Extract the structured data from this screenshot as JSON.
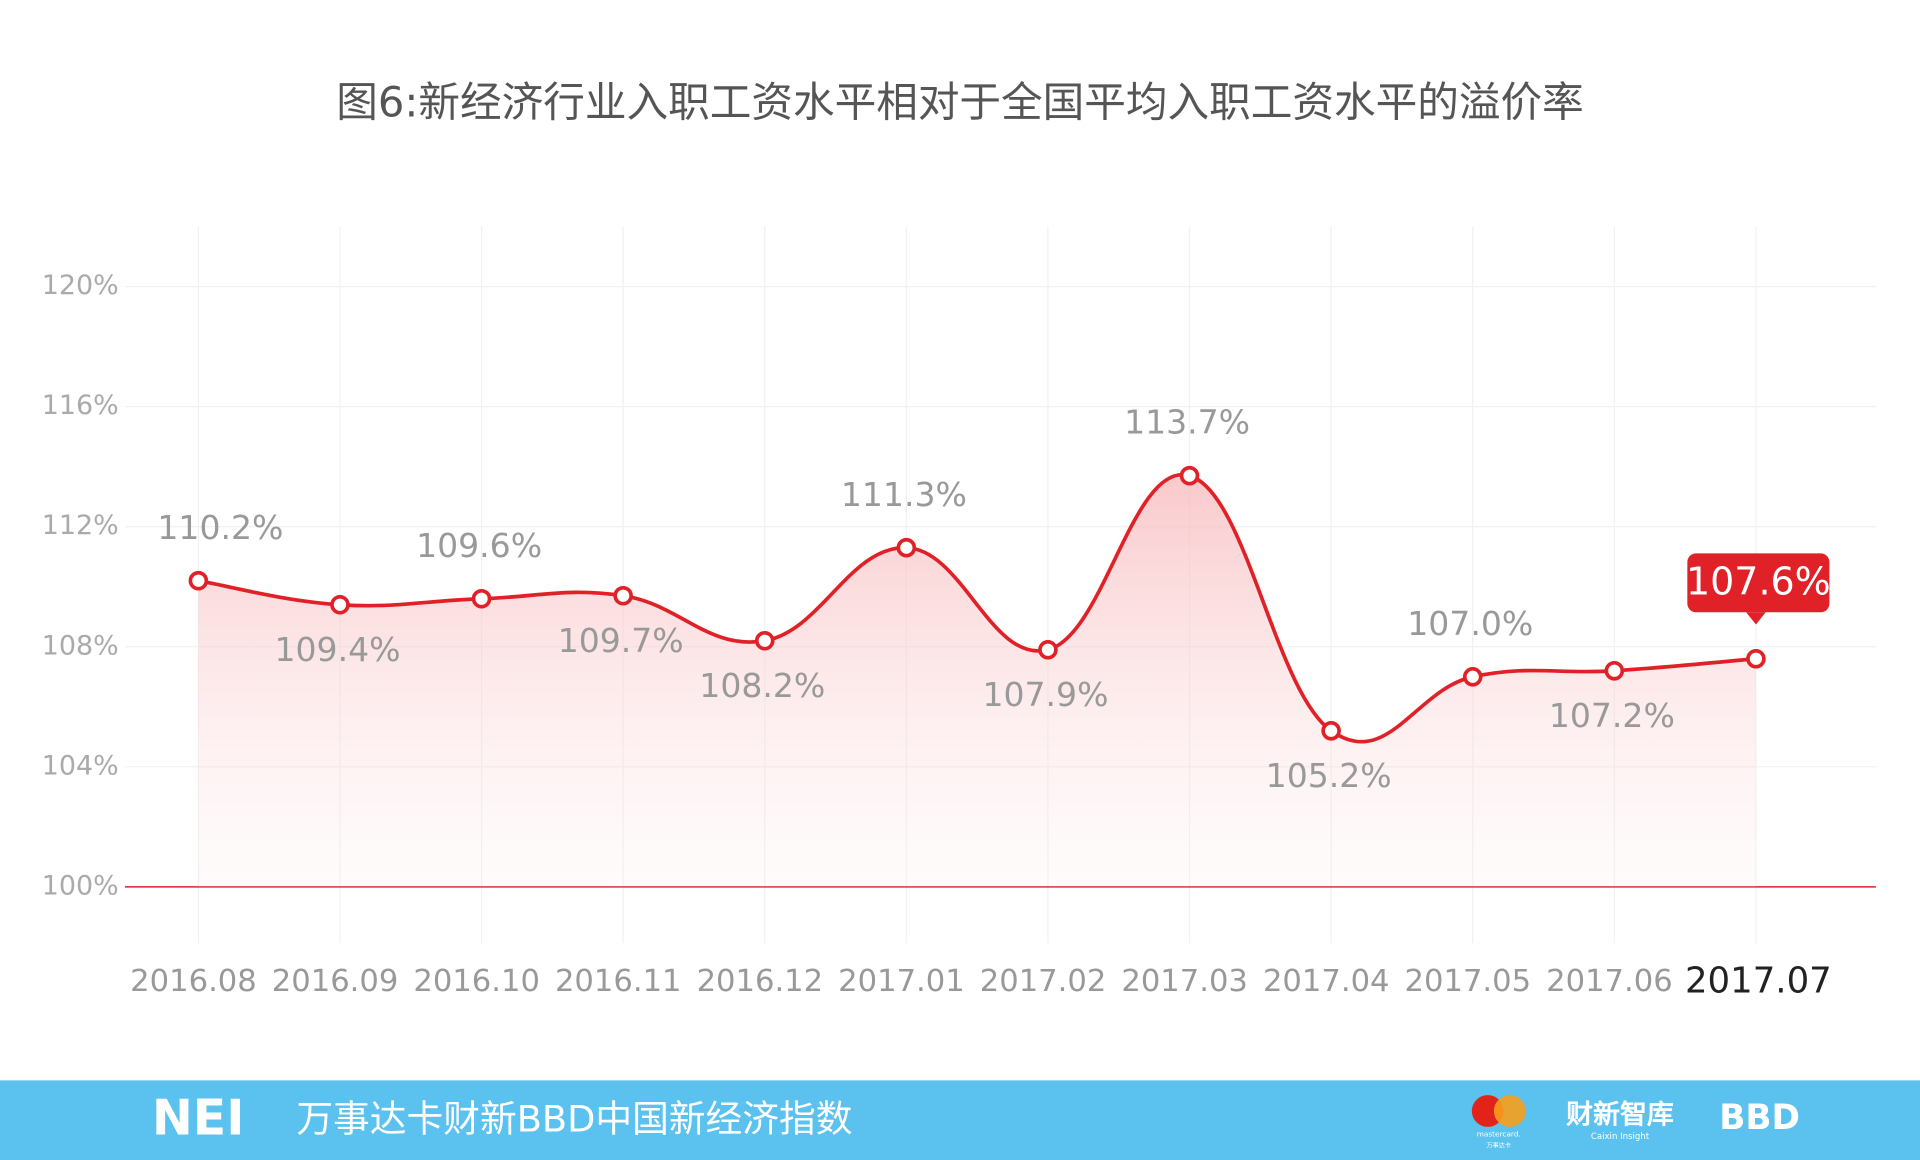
{
  "chart_data": {
    "type": "line",
    "title": "图6:新经济行业入职工资水平相对于全国平均入职工资水平的溢价率",
    "categories": [
      "2016.08",
      "2016.09",
      "2016.10",
      "2016.11",
      "2016.12",
      "2017.01",
      "2017.02",
      "2017.03",
      "2017.04",
      "2017.05",
      "2017.06",
      "2017.07"
    ],
    "series": [
      {
        "color": "#e02128",
        "values": [
          110.2,
          109.4,
          109.6,
          109.7,
          108.2,
          111.3,
          107.9,
          113.7,
          105.2,
          107.0,
          107.2,
          107.6
        ],
        "value_labels": [
          "110.2%",
          "109.4%",
          "109.6%",
          "109.7%",
          "108.2%",
          "111.3%",
          "107.9%",
          "113.7%",
          "105.2%",
          "107.0%",
          "107.2%",
          "107.6%"
        ]
      }
    ],
    "ylim": [
      100,
      120
    ],
    "yticks": [
      {
        "value": 100,
        "label": "100%"
      },
      {
        "value": 104,
        "label": "104%"
      },
      {
        "value": 108,
        "label": "108%"
      },
      {
        "value": 112,
        "label": "112%"
      },
      {
        "value": 116,
        "label": "116%"
      },
      {
        "value": 120,
        "label": "120%"
      }
    ],
    "grid": true
  },
  "footer": {
    "brand": "NEI",
    "name": "万事达卡财新BBD中国新经济指数",
    "mastercard": "mastercard.",
    "mastercard_cn": "万事达卡",
    "caixin": "财新智库",
    "caixin_en": "Caixin Insight",
    "bbd": "BBD"
  }
}
